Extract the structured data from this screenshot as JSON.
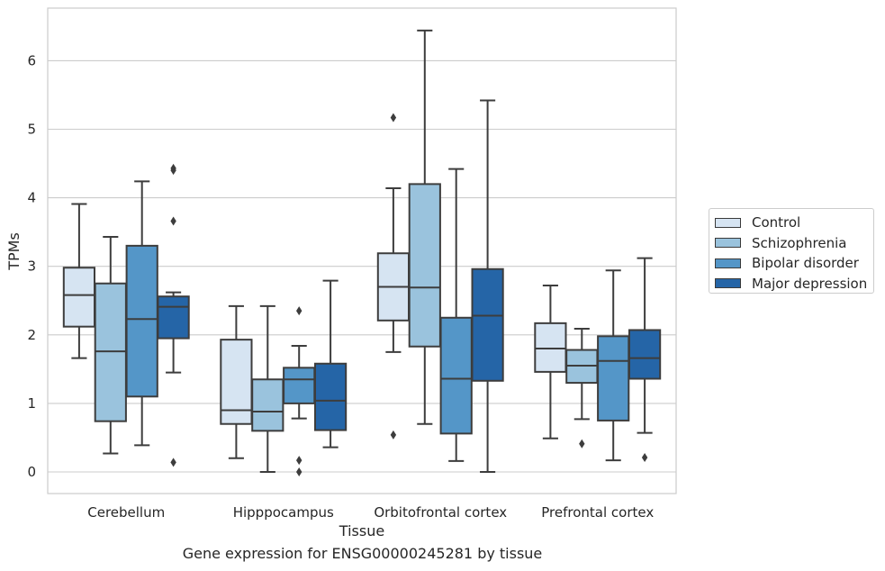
{
  "chart_data": {
    "type": "box",
    "title": "",
    "caption": "Gene expression for ENSG00000245281 by tissue",
    "xlabel": "Tissue",
    "ylabel": "TPMs",
    "ylim": [
      -0.3,
      6.75
    ],
    "yticks": [
      0,
      1,
      2,
      3,
      4,
      5,
      6
    ],
    "grid": true,
    "legend_position": "right",
    "categories": [
      "Cerebellum",
      "Hipppocampus",
      "Orbitofrontal cortex",
      "Prefrontal cortex"
    ],
    "series": [
      {
        "name": "Control",
        "color": "#d6e4f2",
        "boxes": [
          {
            "whisker_low": 1.66,
            "q1": 2.12,
            "median": 2.58,
            "q3": 2.98,
            "whisker_high": 3.91,
            "outliers": []
          },
          {
            "whisker_low": 0.2,
            "q1": 0.7,
            "median": 0.9,
            "q3": 1.93,
            "whisker_high": 2.42,
            "outliers": []
          },
          {
            "whisker_low": 1.75,
            "q1": 2.21,
            "median": 2.7,
            "q3": 3.19,
            "whisker_high": 4.14,
            "outliers": [
              5.17,
              0.54
            ]
          },
          {
            "whisker_low": 0.49,
            "q1": 1.46,
            "median": 1.8,
            "q3": 2.17,
            "whisker_high": 2.72,
            "outliers": []
          }
        ]
      },
      {
        "name": "Schizophrenia",
        "color": "#9ac3dd",
        "boxes": [
          {
            "whisker_low": 0.27,
            "q1": 0.74,
            "median": 1.76,
            "q3": 2.75,
            "whisker_high": 3.43,
            "outliers": []
          },
          {
            "whisker_low": 0.0,
            "q1": 0.6,
            "median": 0.88,
            "q3": 1.35,
            "whisker_high": 2.42,
            "outliers": []
          },
          {
            "whisker_low": 0.7,
            "q1": 1.83,
            "median": 2.69,
            "q3": 4.2,
            "whisker_high": 6.44,
            "outliers": []
          },
          {
            "whisker_low": 0.77,
            "q1": 1.3,
            "median": 1.55,
            "q3": 1.78,
            "whisker_high": 2.09,
            "outliers": [
              0.41
            ]
          }
        ]
      },
      {
        "name": "Bipolar disorder",
        "color": "#5496c8",
        "boxes": [
          {
            "whisker_low": 0.39,
            "q1": 1.1,
            "median": 2.23,
            "q3": 3.3,
            "whisker_high": 4.24,
            "outliers": []
          },
          {
            "whisker_low": 0.78,
            "q1": 1.0,
            "median": 1.35,
            "q3": 1.52,
            "whisker_high": 1.84,
            "outliers": [
              2.35,
              0.17,
              0.0
            ]
          },
          {
            "whisker_low": 0.16,
            "q1": 0.56,
            "median": 1.36,
            "q3": 2.25,
            "whisker_high": 4.42,
            "outliers": []
          },
          {
            "whisker_low": 0.17,
            "q1": 0.75,
            "median": 1.62,
            "q3": 1.98,
            "whisker_high": 2.94,
            "outliers": []
          }
        ]
      },
      {
        "name": "Major depression",
        "color": "#2565a7",
        "boxes": [
          {
            "whisker_low": 1.45,
            "q1": 1.95,
            "median": 2.41,
            "q3": 2.56,
            "whisker_high": 2.62,
            "outliers": [
              4.43,
              4.4,
              3.66,
              0.14
            ]
          },
          {
            "whisker_low": 0.36,
            "q1": 0.61,
            "median": 1.04,
            "q3": 1.58,
            "whisker_high": 2.79,
            "outliers": []
          },
          {
            "whisker_low": 0.0,
            "q1": 1.33,
            "median": 2.28,
            "q3": 2.96,
            "whisker_high": 5.42,
            "outliers": []
          },
          {
            "whisker_low": 0.57,
            "q1": 1.36,
            "median": 1.66,
            "q3": 2.07,
            "whisker_high": 3.12,
            "outliers": [
              0.21
            ]
          }
        ]
      }
    ]
  }
}
